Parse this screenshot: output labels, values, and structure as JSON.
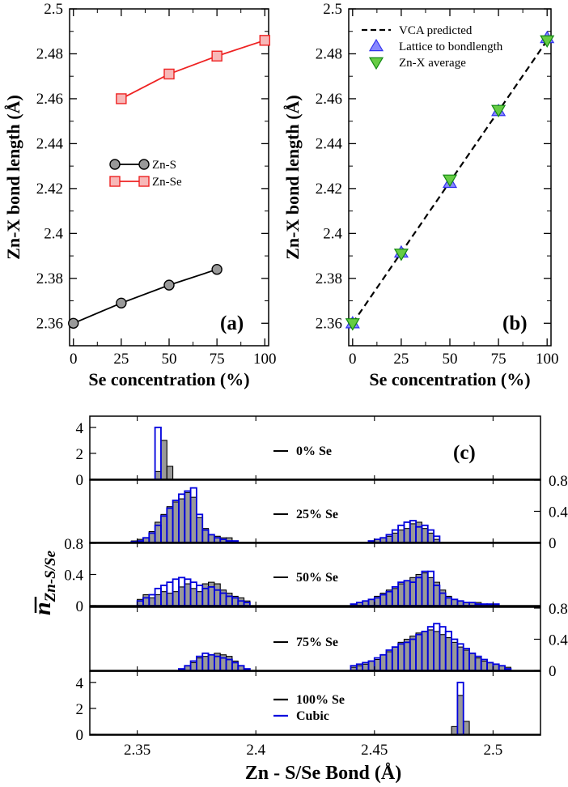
{
  "chart_data": [
    {
      "panel_label": "(a)",
      "type": "line",
      "xlabel": "Se concentration (%)",
      "ylabel": "Zn-X bond length (Å)",
      "xlim": [
        -2,
        102
      ],
      "ylim": [
        2.35,
        2.5
      ],
      "xticks": [
        "0",
        "25",
        "50",
        "75",
        "100"
      ],
      "yticks": [
        "2.36",
        "2.38",
        "2.4",
        "2.42",
        "2.44",
        "2.46",
        "2.48",
        "2.5"
      ],
      "legend_position": "center-left",
      "series": [
        {
          "name": "Zn-S",
          "marker": "circle",
          "color": "#000000",
          "fill": "#999999",
          "x": [
            0,
            25,
            50,
            75
          ],
          "y": [
            2.36,
            2.369,
            2.377,
            2.384
          ]
        },
        {
          "name": "Zn-Se",
          "marker": "square",
          "color": "#ee2222",
          "fill": "#f7b8b8",
          "x": [
            25,
            50,
            75,
            100
          ],
          "y": [
            2.46,
            2.471,
            2.479,
            2.486
          ]
        }
      ]
    },
    {
      "panel_label": "(b)",
      "type": "line",
      "xlabel": "Se concentration (%)",
      "ylabel": "Zn-X bond length (Å)",
      "xlim": [
        -2,
        102
      ],
      "ylim": [
        2.35,
        2.5
      ],
      "xticks": [
        "0",
        "25",
        "50",
        "75",
        "100"
      ],
      "yticks": [
        "2.36",
        "2.38",
        "2.4",
        "2.42",
        "2.44",
        "2.46",
        "2.48",
        "2.5"
      ],
      "legend_position": "top-left",
      "series": [
        {
          "name": "VCA predicted",
          "style": "dashed-line",
          "color": "#000000",
          "x": [
            0,
            100
          ],
          "y": [
            2.36,
            2.486
          ]
        },
        {
          "name": "Lattice to bondlength",
          "marker": "triangle-up",
          "color": "#3333ee",
          "fill": "#8888ff",
          "x": [
            0,
            25,
            50,
            75,
            100
          ],
          "y": [
            2.36,
            2.3915,
            2.4225,
            2.4545,
            2.487
          ]
        },
        {
          "name": "Zn-X average",
          "marker": "triangle-down",
          "color": "#118811",
          "fill": "#66cc44",
          "x": [
            0,
            25,
            50,
            75,
            100
          ],
          "y": [
            2.36,
            2.391,
            2.424,
            2.455,
            2.486
          ]
        }
      ]
    },
    {
      "panel_label": "(c)",
      "type": "bar",
      "xlabel": "Zn - S/Se Bond (Å)",
      "ylabel_main": "n",
      "ylabel_sub": "Zn-S/Se",
      "xlim": [
        2.33,
        2.52
      ],
      "xticks": [
        "2.35",
        "2.4",
        "2.45",
        "2.5"
      ],
      "bin_width": 0.0025,
      "legend": [
        {
          "name": "100% Se",
          "color": "#000000"
        },
        {
          "name": "Cubic",
          "color": "#0000dd"
        }
      ],
      "rows": [
        {
          "label": "0% Se",
          "ymax": 4.8,
          "yticks": [
            "0",
            "2",
            "4"
          ],
          "tick_side": "left",
          "alloy": {
            "bins": [
              2.3575,
              2.36,
              2.3625
            ],
            "values": [
              0.6,
              3.0,
              1.0
            ]
          },
          "cubic": {
            "bins": [
              2.3575
            ],
            "values": [
              4.0
            ]
          }
        },
        {
          "label": "25% Se",
          "ymax": 0.8,
          "yticks": [
            "0",
            "0.4",
            "0.8"
          ],
          "tick_side": "right",
          "alloy": {
            "bins": [
              2.3475,
              2.35,
              2.3525,
              2.355,
              2.3575,
              2.36,
              2.3625,
              2.365,
              2.3675,
              2.37,
              2.3725,
              2.375,
              2.3775,
              2.38,
              2.3825,
              2.385,
              2.3875,
              2.39,
              2.4475,
              2.45,
              2.4525,
              2.455,
              2.4575,
              2.46,
              2.4625,
              2.465,
              2.4675,
              2.47,
              2.4725,
              2.475
            ],
            "values": [
              0.02,
              0.04,
              0.06,
              0.14,
              0.26,
              0.36,
              0.46,
              0.52,
              0.56,
              0.64,
              0.58,
              0.32,
              0.18,
              0.1,
              0.08,
              0.06,
              0.06,
              0.02,
              0.02,
              0.04,
              0.06,
              0.08,
              0.12,
              0.16,
              0.18,
              0.24,
              0.26,
              0.18,
              0.12,
              0.04
            ]
          },
          "cubic": {
            "bins": [
              2.3475,
              2.35,
              2.3525,
              2.355,
              2.3575,
              2.36,
              2.3625,
              2.365,
              2.3675,
              2.37,
              2.3725,
              2.375,
              2.3775,
              2.38,
              2.3825,
              2.385,
              2.3875,
              2.39,
              2.4475,
              2.45,
              2.4525,
              2.455,
              2.4575,
              2.46,
              2.4625,
              2.465,
              2.4675,
              2.47,
              2.4725,
              2.475
            ],
            "values": [
              0.01,
              0.02,
              0.06,
              0.12,
              0.22,
              0.34,
              0.44,
              0.54,
              0.62,
              0.66,
              0.7,
              0.36,
              0.16,
              0.1,
              0.06,
              0.04,
              0.02,
              0.02,
              0.02,
              0.04,
              0.06,
              0.1,
              0.16,
              0.22,
              0.26,
              0.28,
              0.2,
              0.22,
              0.16,
              0.08
            ]
          }
        },
        {
          "label": "50% Se",
          "ymax": 0.8,
          "yticks": [
            "0",
            "0.4",
            "0.8"
          ],
          "tick_side": "left",
          "alloy": {
            "bins": [
              2.35,
              2.3525,
              2.355,
              2.3575,
              2.36,
              2.3625,
              2.365,
              2.3675,
              2.37,
              2.3725,
              2.375,
              2.3775,
              2.38,
              2.3825,
              2.385,
              2.3875,
              2.39,
              2.3925,
              2.395,
              2.44,
              2.4425,
              2.445,
              2.4475,
              2.45,
              2.4525,
              2.455,
              2.4575,
              2.46,
              2.4625,
              2.465,
              2.4675,
              2.47,
              2.4725,
              2.475,
              2.4775,
              2.48,
              2.4825,
              2.485,
              2.4875,
              2.49,
              2.4925,
              2.495,
              2.4975,
              2.5
            ],
            "values": [
              0.08,
              0.14,
              0.1,
              0.14,
              0.18,
              0.16,
              0.18,
              0.24,
              0.28,
              0.22,
              0.18,
              0.28,
              0.3,
              0.28,
              0.2,
              0.16,
              0.12,
              0.1,
              0.06,
              0.02,
              0.04,
              0.06,
              0.08,
              0.12,
              0.16,
              0.2,
              0.22,
              0.28,
              0.32,
              0.36,
              0.4,
              0.42,
              0.36,
              0.3,
              0.2,
              0.12,
              0.08,
              0.06,
              0.04,
              0.04,
              0.04,
              0.02,
              0.02,
              0.02
            ]
          },
          "cubic": {
            "bins": [
              2.35,
              2.3525,
              2.355,
              2.3575,
              2.36,
              2.3625,
              2.365,
              2.3675,
              2.37,
              2.3725,
              2.375,
              2.3775,
              2.38,
              2.3825,
              2.385,
              2.3875,
              2.39,
              2.3925,
              2.395,
              2.44,
              2.4425,
              2.445,
              2.4475,
              2.45,
              2.4525,
              2.455,
              2.4575,
              2.46,
              2.4625,
              2.465,
              2.4675,
              2.47,
              2.4725,
              2.475,
              2.4775,
              2.48,
              2.4825,
              2.485,
              2.4875,
              2.49,
              2.4925,
              2.495,
              2.4975,
              2.5
            ],
            "values": [
              0.06,
              0.1,
              0.14,
              0.22,
              0.26,
              0.3,
              0.34,
              0.36,
              0.34,
              0.3,
              0.26,
              0.22,
              0.24,
              0.2,
              0.16,
              0.12,
              0.1,
              0.06,
              0.04,
              0.02,
              0.04,
              0.06,
              0.08,
              0.1,
              0.14,
              0.18,
              0.24,
              0.3,
              0.32,
              0.3,
              0.36,
              0.44,
              0.44,
              0.26,
              0.16,
              0.1,
              0.08,
              0.06,
              0.04,
              0.04,
              0.02,
              0.02,
              0.02,
              0.02
            ]
          }
        },
        {
          "label": "75% Se",
          "ymax": 0.8,
          "yticks": [
            "0",
            "0.4",
            "0.8"
          ],
          "tick_side": "right",
          "alloy": {
            "bins": [
              2.3675,
              2.37,
              2.3725,
              2.375,
              2.3775,
              2.38,
              2.3825,
              2.385,
              2.3875,
              2.39,
              2.3925,
              2.395,
              2.44,
              2.4425,
              2.445,
              2.4475,
              2.45,
              2.4525,
              2.455,
              2.4575,
              2.46,
              2.4625,
              2.465,
              2.4675,
              2.47,
              2.4725,
              2.475,
              2.4775,
              2.48,
              2.4825,
              2.485,
              2.4875,
              2.49,
              2.4925,
              2.495,
              2.4975,
              2.5,
              2.5025,
              2.505
            ],
            "values": [
              0.02,
              0.06,
              0.1,
              0.16,
              0.18,
              0.2,
              0.22,
              0.2,
              0.18,
              0.12,
              0.06,
              0.02,
              0.04,
              0.06,
              0.08,
              0.12,
              0.14,
              0.2,
              0.24,
              0.3,
              0.36,
              0.4,
              0.44,
              0.48,
              0.5,
              0.52,
              0.5,
              0.46,
              0.42,
              0.36,
              0.3,
              0.26,
              0.22,
              0.16,
              0.12,
              0.1,
              0.08,
              0.06,
              0.04
            ]
          },
          "cubic": {
            "bins": [
              2.3675,
              2.37,
              2.3725,
              2.375,
              2.3775,
              2.38,
              2.3825,
              2.385,
              2.3875,
              2.39,
              2.3925,
              2.395,
              2.44,
              2.4425,
              2.445,
              2.4475,
              2.45,
              2.4525,
              2.455,
              2.4575,
              2.46,
              2.4625,
              2.465,
              2.4675,
              2.47,
              2.4725,
              2.475,
              2.4775,
              2.48,
              2.4825,
              2.485,
              2.4875,
              2.49,
              2.4925,
              2.495,
              2.4975,
              2.5,
              2.5025,
              2.505
            ],
            "values": [
              0.02,
              0.06,
              0.12,
              0.18,
              0.22,
              0.2,
              0.18,
              0.16,
              0.14,
              0.1,
              0.06,
              0.02,
              0.06,
              0.08,
              0.1,
              0.12,
              0.16,
              0.2,
              0.26,
              0.3,
              0.34,
              0.36,
              0.4,
              0.46,
              0.5,
              0.56,
              0.6,
              0.56,
              0.5,
              0.4,
              0.34,
              0.28,
              0.22,
              0.18,
              0.14,
              0.1,
              0.08,
              0.06,
              0.02
            ]
          }
        },
        {
          "label": "",
          "ymax": 4.8,
          "yticks": [
            "0",
            "2",
            "4"
          ],
          "tick_side": "left",
          "alloy": {
            "bins": [
              2.4825,
              2.485,
              2.4875
            ],
            "values": [
              0.6,
              3.0,
              1.0
            ]
          },
          "cubic": {
            "bins": [
              2.485
            ],
            "values": [
              4.0
            ]
          }
        }
      ]
    }
  ]
}
